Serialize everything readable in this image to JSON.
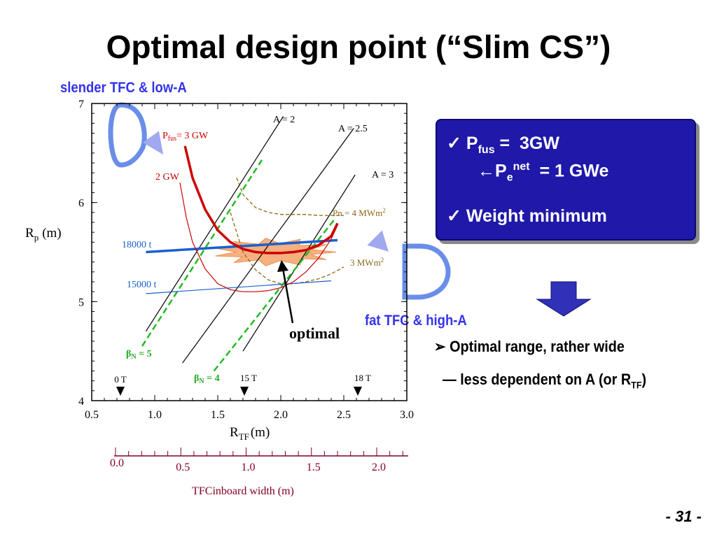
{
  "title": "Optimal design point (“Slim CS”)",
  "labels": {
    "slender": "slender TFC &  low-A",
    "fat": "fat TFC &  high-A",
    "optimal": "optimal"
  },
  "box": {
    "check": "✓",
    "p_main": "P",
    "p_sub": "fus",
    "p_rest": " =  3GW",
    "arrow_main": "←P",
    "arrow_sub": "e",
    "arrow_sup": "net",
    "arrow_rest": "  = 1 GWe",
    "weight": "Weight minimum"
  },
  "bullets": {
    "marker": "➢",
    "line1": "Optimal range, rather wide",
    "line2_main": "— less dependent on A (or R",
    "line2_sub": "TF",
    "line2_end": ")"
  },
  "page_number": "- 31 -",
  "colors": {
    "box_fill": "#1f18a8",
    "label_blue": "#3333ee",
    "pfus": "#cc0000",
    "weight": "#1a5fd0",
    "beta": "#22bb22",
    "neutron": "#8b6914",
    "bottom_axis": "#800020",
    "optimal_region": "#f5b080"
  },
  "chart_data": {
    "type": "line",
    "x_axis": {
      "label_main": "R",
      "label_sub": "TF",
      "label_unit": "(m)",
      "range": [
        0.5,
        3.0
      ],
      "ticks": [
        "0.5",
        "1.0",
        "1.5",
        "2.0",
        "2.5",
        "3.0"
      ]
    },
    "y_axis": {
      "label_main": "R",
      "label_sub": "p",
      "label_unit": "(m)",
      "range": [
        4,
        7
      ],
      "ticks": [
        "4",
        "5",
        "6",
        "7"
      ]
    },
    "secondary_x_axis": {
      "label": "TFCinboard width (m)",
      "ticks": [
        "0.0",
        "0.5",
        "1.0",
        "1.5",
        "2.0"
      ]
    },
    "field_markers": [
      "0 T",
      "15 T",
      "18 T"
    ],
    "series": [
      {
        "name_main": "P",
        "name_sub": "fus",
        "name_rest": "= 3 GW",
        "x": [
          1.24,
          1.3,
          1.4,
          1.5,
          1.6,
          1.7,
          1.8,
          1.9,
          2.0,
          2.1,
          2.2,
          2.3,
          2.4,
          2.45
        ],
        "y": [
          6.57,
          6.25,
          5.93,
          5.72,
          5.6,
          5.53,
          5.5,
          5.49,
          5.49,
          5.5,
          5.52,
          5.57,
          5.66,
          5.79
        ]
      },
      {
        "name_main": "2 GW",
        "name_sub": "",
        "name_rest": "",
        "x": [
          1.2,
          1.25,
          1.3,
          1.4,
          1.5,
          1.6,
          1.7,
          1.8,
          1.9,
          2.0,
          2.1,
          2.2,
          2.3,
          2.4,
          2.45
        ],
        "y": [
          6.2,
          5.85,
          5.6,
          5.33,
          5.18,
          5.12,
          5.1,
          5.1,
          5.11,
          5.14,
          5.2,
          5.3,
          5.44,
          5.63,
          5.77
        ]
      },
      {
        "name_main": "18000 t",
        "x": [
          0.93,
          2.45
        ],
        "y": [
          5.5,
          5.62
        ]
      },
      {
        "name_main": "15000 t",
        "x": [
          0.93,
          2.4
        ],
        "y": [
          5.08,
          5.21
        ]
      },
      {
        "name_main": "A = 2",
        "x": [
          0.93,
          2.02
        ],
        "y": [
          4.7,
          6.87
        ]
      },
      {
        "name_main": "A = 2.5",
        "x": [
          1.22,
          2.58
        ],
        "y": [
          4.38,
          6.75
        ]
      },
      {
        "name_main": "A = 3",
        "x": [
          1.7,
          2.59
        ],
        "y": [
          4.5,
          6.28
        ]
      },
      {
        "name_main": "β",
        "name_sub": "N",
        "name_rest": " = 5",
        "x": [
          0.9,
          1.85
        ],
        "y": [
          4.55,
          6.43
        ]
      },
      {
        "name_main": "β",
        "name_sub": "N",
        "name_rest": " = 4",
        "x": [
          1.47,
          2.42
        ],
        "y": [
          4.3,
          5.82
        ]
      },
      {
        "name_main": "Pn = 4 MWm",
        "name_sup": "2",
        "x": [
          1.65,
          1.7,
          1.8,
          1.9,
          2.0,
          2.1,
          2.2,
          2.3,
          2.4,
          2.5
        ],
        "y": [
          6.25,
          6.08,
          5.95,
          5.9,
          5.88,
          5.88,
          5.88,
          5.87,
          5.87,
          5.87
        ]
      },
      {
        "name_main": "3 MWm",
        "name_sup": "2",
        "x": [
          1.6,
          1.65,
          1.7,
          1.8,
          1.9,
          2.0,
          2.1,
          2.2,
          2.3,
          2.4,
          2.5
        ],
        "y": [
          5.9,
          5.7,
          5.5,
          5.32,
          5.22,
          5.18,
          5.18,
          5.2,
          5.23,
          5.28,
          5.35
        ]
      }
    ],
    "grid": false
  }
}
